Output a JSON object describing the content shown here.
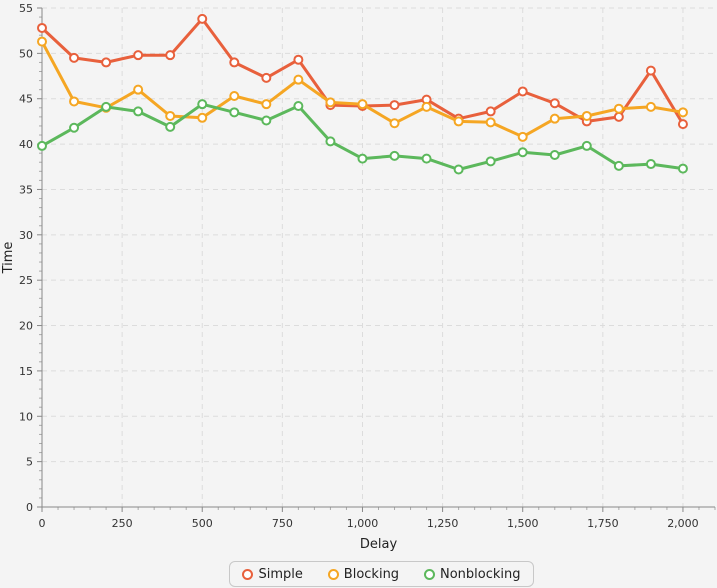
{
  "chart_data": {
    "type": "line",
    "title": "",
    "xlabel": "Delay",
    "ylabel": "Time",
    "xlim": [
      0,
      2100
    ],
    "ylim": [
      0,
      55
    ],
    "x_ticks": [
      0,
      250,
      500,
      750,
      1000,
      1250,
      1500,
      1750,
      2000
    ],
    "x_tick_labels": [
      "0",
      "250",
      "500",
      "750",
      "1,000",
      "1,250",
      "1,500",
      "1,750",
      "2,000"
    ],
    "y_ticks": [
      0,
      5,
      10,
      15,
      20,
      25,
      30,
      35,
      40,
      45,
      50,
      55
    ],
    "y_tick_labels": [
      "0",
      "5",
      "10",
      "15",
      "20",
      "25",
      "30",
      "35",
      "40",
      "45",
      "50",
      "55"
    ],
    "grid": true,
    "legend_position": "bottom-center",
    "x": [
      0,
      100,
      200,
      300,
      400,
      500,
      600,
      700,
      800,
      900,
      1000,
      1100,
      1200,
      1300,
      1400,
      1500,
      1600,
      1700,
      1800,
      1900,
      2000
    ],
    "series": [
      {
        "name": "Simple",
        "color": "#e8603c",
        "values": [
          52.8,
          49.5,
          49.0,
          49.8,
          49.8,
          53.8,
          49.0,
          47.3,
          49.3,
          44.3,
          44.2,
          44.3,
          44.9,
          42.8,
          43.6,
          45.8,
          44.5,
          42.5,
          43.0,
          48.1,
          42.2
        ]
      },
      {
        "name": "Blocking",
        "color": "#f5a623",
        "values": [
          51.3,
          44.7,
          44.0,
          46.0,
          43.1,
          42.9,
          45.3,
          44.4,
          47.1,
          44.6,
          44.4,
          42.3,
          44.1,
          42.5,
          42.4,
          40.8,
          42.8,
          43.1,
          43.9,
          44.1,
          43.5
        ]
      },
      {
        "name": "Nonblocking",
        "color": "#5cb85c",
        "values": [
          39.8,
          41.8,
          44.1,
          43.6,
          41.9,
          44.4,
          43.5,
          42.6,
          44.2,
          40.3,
          38.4,
          38.7,
          38.4,
          37.2,
          38.1,
          39.1,
          38.8,
          39.8,
          37.6,
          37.8,
          37.3
        ]
      }
    ]
  }
}
